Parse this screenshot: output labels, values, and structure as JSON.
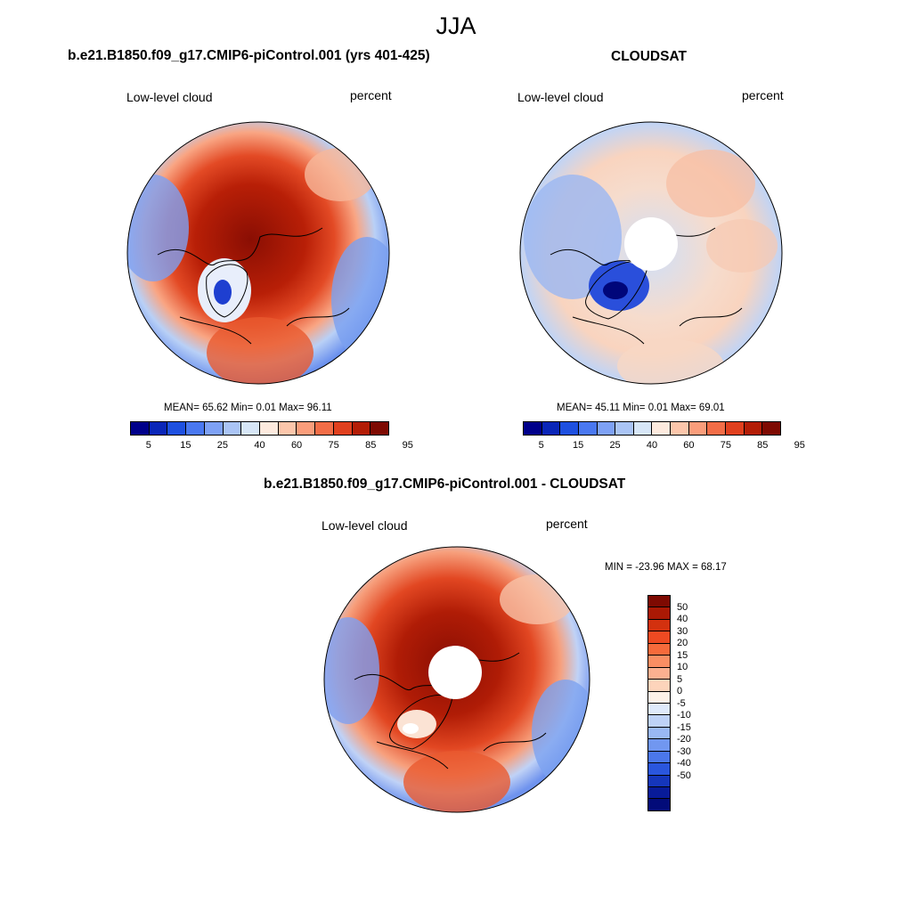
{
  "figure": {
    "season": "JJA"
  },
  "panels": [
    {
      "title": "b.e21.B1850.f09_g17.CMIP6-piControl.001 (yrs 401-425)",
      "variable": "Low-level cloud",
      "units": "percent",
      "stats": "MEAN=  65.62  Min=   0.01  Max=  96.11"
    },
    {
      "title": "CLOUDSAT",
      "variable": "Low-level cloud",
      "units": "percent",
      "stats": "MEAN=  45.11  Min=   0.01  Max=  69.01"
    },
    {
      "title": "b.e21.B1850.f09_g17.CMIP6-piControl.001 - CLOUDSAT",
      "variable": "Low-level cloud",
      "units": "percent",
      "stats": "MIN = -23.96 MAX =  68.17"
    }
  ],
  "colorbars": {
    "abs": {
      "colors": [
        "#00008a",
        "#0a26b8",
        "#1e50e0",
        "#4a78f0",
        "#7ea1f5",
        "#aac4f5",
        "#d7e6f7",
        "#fdeade",
        "#fcc6ab",
        "#fa9d7b",
        "#f26d47",
        "#e0401e",
        "#b31d06",
        "#7e0a02"
      ],
      "tick_labels": [
        "5",
        "15",
        "25",
        "40",
        "60",
        "75",
        "85",
        "95"
      ]
    },
    "diff": {
      "colors_top_to_bottom": [
        "#7e0a02",
        "#aa1905",
        "#d3310f",
        "#ee4a22",
        "#f66a3b",
        "#f98e63",
        "#fbb090",
        "#fdd4bb",
        "#fdf2e8",
        "#dfeafb",
        "#bed2f7",
        "#9ab8f4",
        "#7197f0",
        "#4b77ea",
        "#2a56dd",
        "#1536bb",
        "#081b99",
        "#020b79"
      ],
      "tick_labels": [
        "50",
        "40",
        "30",
        "20",
        "15",
        "10",
        "5",
        "0",
        "-5",
        "-10",
        "-15",
        "-20",
        "-30",
        "-40",
        "-50"
      ]
    }
  }
}
